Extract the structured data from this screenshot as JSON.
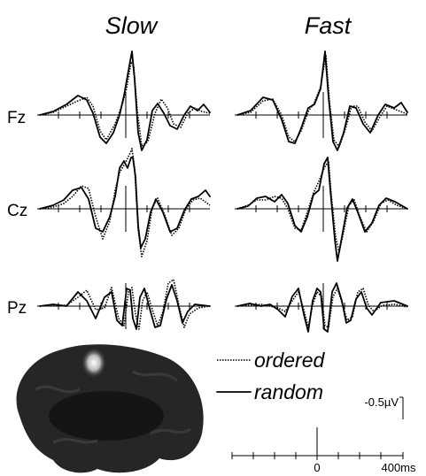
{
  "columns": [
    "Slow",
    "Fast"
  ],
  "rows": [
    "Fz",
    "Cz",
    "Pz"
  ],
  "legend": [
    "ordered",
    "random"
  ],
  "scale": {
    "amplitude": "-0.5µV",
    "time_zero": "0",
    "time_end": "400ms"
  }
}
